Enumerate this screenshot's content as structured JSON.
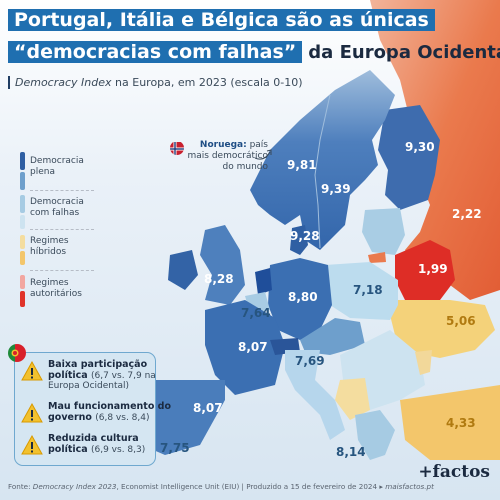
{
  "title": {
    "line1": "Portugal, Itália e Bélgica são as únicas",
    "line2_highlight": "“democracias com falhas”",
    "line2_tail": "da Europa Ocidental"
  },
  "subtitle": {
    "italic": "Democracy Index",
    "rest": "na Europa, em 2023 (escala 0-10)"
  },
  "legend": [
    {
      "label": "Democracia plena",
      "color": "#3a6fb2"
    },
    {
      "label": "Democracia com falhas",
      "color": "#b9d8ea"
    },
    {
      "label": "Regimes híbridos",
      "color": "#f3c66b"
    },
    {
      "label": "Regimes autoritários",
      "color": "#e0332a"
    }
  ],
  "map_values": [
    {
      "value": "9,81",
      "country": "Noruega"
    },
    {
      "value": "9,39",
      "country": "Suécia"
    },
    {
      "value": "9,30",
      "country": "Finlândia"
    },
    {
      "value": "9,28",
      "country": "Dinamarca"
    },
    {
      "value": "2,22",
      "country": "Rússia"
    },
    {
      "value": "1,99",
      "country": "Bielorrússia"
    },
    {
      "value": "8,28",
      "country": "Reino Unido"
    },
    {
      "value": "7,18",
      "country": "Polónia"
    },
    {
      "value": "8,80",
      "country": "Alemanha"
    },
    {
      "value": "7,64",
      "country": "Bélgica"
    },
    {
      "value": "5,06",
      "country": "Ucrânia"
    },
    {
      "value": "8,07",
      "country": "França"
    },
    {
      "value": "7,69",
      "country": "Itália"
    },
    {
      "value": "8,07",
      "country": "Espanha"
    },
    {
      "value": "7,75",
      "country": "Portugal"
    },
    {
      "value": "8,14",
      "country": "Grécia"
    },
    {
      "value": "4,33",
      "country": "Turquia"
    }
  ],
  "norway_note": {
    "name": "Noruega:",
    "text": "país mais democrático do mundo"
  },
  "portugal_reasons": [
    {
      "title": "Baixa participação",
      "title2": "política",
      "detail": "(6,7 vs. 7,9 na",
      "detail2": "Europa Ocidental)"
    },
    {
      "title": "Mau funcionamento do",
      "title2": "governo",
      "detail": "(6,8 vs. 8,4)",
      "detail2": ""
    },
    {
      "title": "Reduzida cultura",
      "title2": "política",
      "detail": "(6,9 vs. 8,3)",
      "detail2": ""
    }
  ],
  "footer": {
    "prefix": "Fonte:",
    "source_italic": "Democracy Index 2023",
    "rest": ", Economist Intelligence Unit (EIU)  |  Produzido a 15 de fevereiro de 2024  ▸",
    "site": "maisfactos.pt"
  },
  "brand": "+factos",
  "colors": {
    "full_democracy": "#3a6fb2",
    "flawed_democracy": "#b9d8ea",
    "hybrid": "#f3c66b",
    "authoritarian": "#e0332a",
    "russia": "#e8704a",
    "title_box": "#1f6fb0"
  }
}
